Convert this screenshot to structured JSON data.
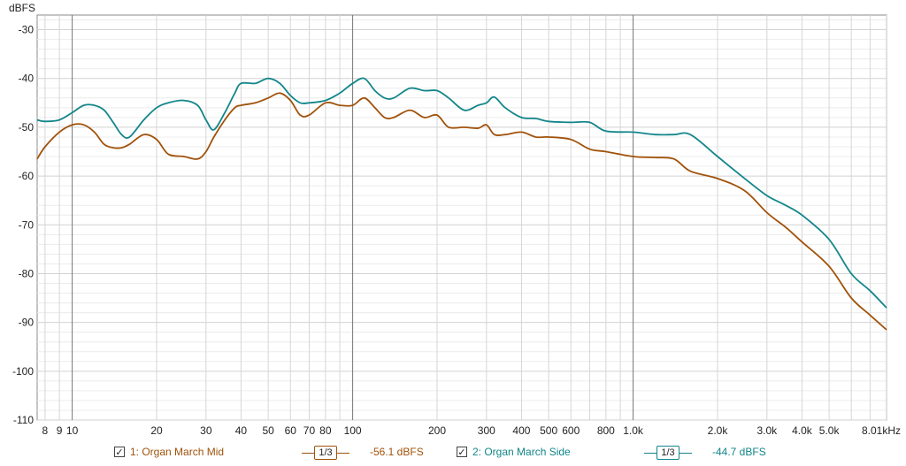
{
  "chart_data": {
    "type": "line",
    "ylabel": "dBFS",
    "xscale": "log",
    "xlim": [
      7.5,
      8010
    ],
    "ylim": [
      -110,
      -27
    ],
    "yticks": [
      -30,
      -40,
      -50,
      -60,
      -70,
      -80,
      -90,
      -100,
      -110
    ],
    "ytick_labels": [
      "-30",
      "-40",
      "-50",
      "-60",
      "-70",
      "-80",
      "-90",
      "-100",
      "-110"
    ],
    "xticks": [
      8,
      9,
      10,
      20,
      30,
      40,
      50,
      60,
      70,
      80,
      100,
      200,
      300,
      400,
      500,
      600,
      800,
      1000,
      2000,
      3000,
      4000,
      5000,
      8010
    ],
    "xtick_labels": [
      "8",
      "9",
      "10",
      "20",
      "30",
      "40",
      "50",
      "60",
      "70",
      "80",
      "100",
      "200",
      "300",
      "400",
      "500",
      "600",
      "800",
      "1.0k",
      "2.0k",
      "3.0k",
      "4.0k",
      "5.0k",
      "8.01kHz"
    ],
    "major_x": [
      10,
      100,
      1000
    ],
    "grid": true,
    "series": [
      {
        "name": "1: Organ March Mid",
        "color": "#a0520a",
        "x": [
          7.5,
          8,
          9,
          10,
          11,
          12,
          13,
          14,
          15,
          16,
          18,
          20,
          22,
          25,
          28,
          30,
          32,
          35,
          38,
          40,
          45,
          50,
          55,
          60,
          65,
          70,
          80,
          90,
          100,
          110,
          120,
          130,
          140,
          160,
          180,
          200,
          220,
          250,
          280,
          300,
          320,
          350,
          400,
          450,
          500,
          600,
          700,
          800,
          1000,
          1200,
          1400,
          1600,
          2000,
          2500,
          3000,
          3500,
          4000,
          5000,
          6000,
          7000,
          8010
        ],
        "y": [
          -56.5,
          -54,
          -51,
          -49.5,
          -49.5,
          -51,
          -53.5,
          -54.2,
          -54.2,
          -53.5,
          -51.5,
          -52.5,
          -55.5,
          -56,
          -56.5,
          -55,
          -52,
          -48.5,
          -46,
          -45.5,
          -45,
          -44,
          -43,
          -44.5,
          -47.5,
          -47.5,
          -45,
          -45.5,
          -45.5,
          -44,
          -46,
          -48,
          -48,
          -46.5,
          -48,
          -47.5,
          -50,
          -50,
          -50.2,
          -49.5,
          -51.5,
          -51.5,
          -51,
          -52,
          -52,
          -52.5,
          -54.5,
          -55,
          -56,
          -56.2,
          -56.5,
          -59,
          -60.5,
          -63,
          -67.5,
          -70.5,
          -73.5,
          -78.5,
          -85,
          -88.5,
          -91.5
        ]
      },
      {
        "name": "2: Organ March Side",
        "color": "#12868a",
        "x": [
          7.5,
          8,
          9,
          10,
          11,
          12,
          13,
          14,
          15,
          16,
          18,
          20,
          22,
          25,
          28,
          30,
          32,
          35,
          38,
          40,
          45,
          50,
          55,
          60,
          65,
          70,
          80,
          90,
          100,
          110,
          120,
          130,
          140,
          160,
          180,
          200,
          220,
          250,
          280,
          300,
          320,
          350,
          400,
          450,
          500,
          600,
          700,
          800,
          1000,
          1200,
          1400,
          1600,
          2000,
          2500,
          3000,
          3500,
          4000,
          5000,
          6000,
          7000,
          8010
        ],
        "y": [
          -48.5,
          -48.8,
          -48.5,
          -47,
          -45.5,
          -45.5,
          -46.5,
          -49,
          -51.5,
          -52,
          -48.5,
          -46,
          -45,
          -44.5,
          -45.5,
          -48.5,
          -50.5,
          -47,
          -43,
          -41,
          -41,
          -40,
          -41,
          -43.5,
          -45,
          -45,
          -44.5,
          -43,
          -41,
          -40,
          -42.5,
          -44,
          -44,
          -42,
          -42.5,
          -42.5,
          -44,
          -46.5,
          -45.5,
          -45,
          -43.8,
          -46,
          -48,
          -48.2,
          -48.8,
          -49,
          -49,
          -50.8,
          -51,
          -51.5,
          -51.5,
          -51.5,
          -56,
          -60.5,
          -64,
          -66,
          -68,
          -73,
          -80,
          -83.5,
          -87
        ]
      }
    ]
  },
  "legend": {
    "items": [
      {
        "label": "1: Organ March Mid",
        "smoothing": "1/3",
        "level": "-56.1 dBFS",
        "color": "#a0520a",
        "checked": "✓"
      },
      {
        "label": "2: Organ March Side",
        "smoothing": "1/3",
        "level": "-44.7 dBFS",
        "color": "#12868a",
        "checked": "✓"
      }
    ]
  }
}
